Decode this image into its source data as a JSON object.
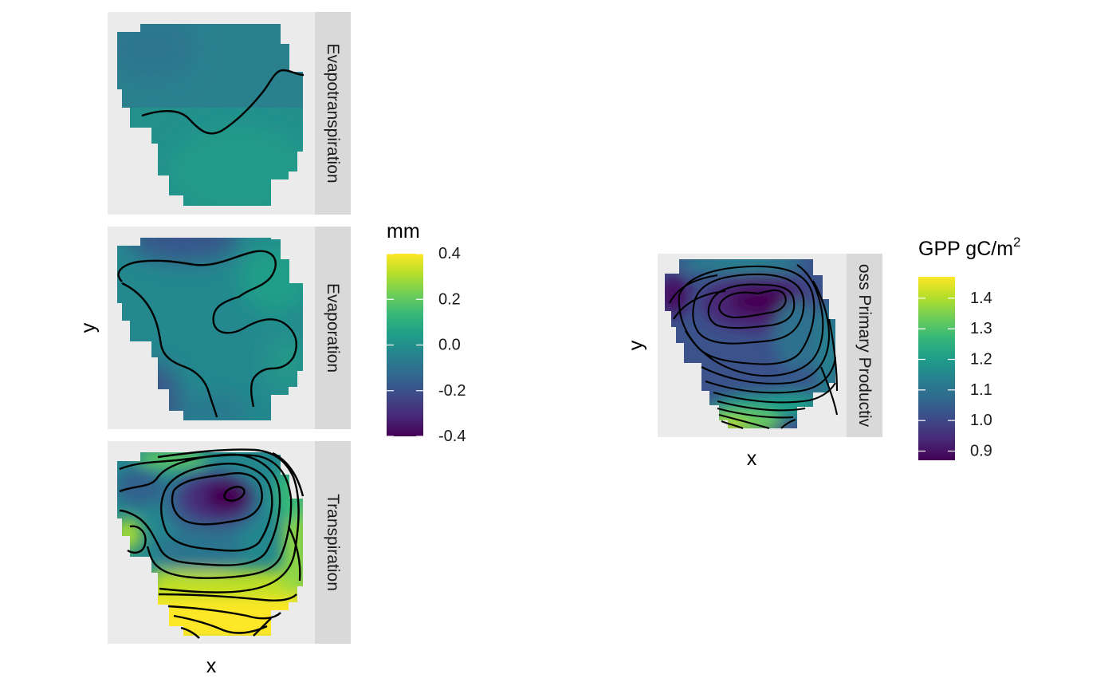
{
  "chart_data": [
    {
      "type": "heatmap",
      "x_axis_label": "x",
      "y_axis_label": "y",
      "x_ticks": [],
      "y_ticks": [],
      "panels": [
        {
          "strip_label": "Evapotranspiration",
          "approx_range": [
            0.0,
            0.1
          ],
          "contour_count": 1
        },
        {
          "strip_label": "Evaporation",
          "approx_range": [
            -0.2,
            0.1
          ],
          "contour_count": 3
        },
        {
          "strip_label": "Transpiration",
          "approx_range": [
            -0.4,
            0.4
          ],
          "contour_count": 12
        }
      ],
      "legend": {
        "title": "mm",
        "colormap": "viridis",
        "limits": [
          -0.4,
          0.4
        ],
        "breaks": [
          0.4,
          0.2,
          0.0,
          -0.2,
          -0.4
        ],
        "break_labels": [
          "0.4",
          "0.2",
          "0.0",
          "-0.2",
          "-0.4"
        ]
      }
    },
    {
      "type": "heatmap",
      "x_axis_label": "x",
      "y_axis_label": "y",
      "x_ticks": [],
      "y_ticks": [],
      "panels": [
        {
          "strip_label": "oss Primary Productiv",
          "approx_range": [
            0.88,
            1.43
          ],
          "contour_count": 17
        }
      ],
      "legend": {
        "title_main": "GPP gC/m",
        "title_superscript": "2",
        "colormap": "viridis",
        "limits": [
          0.87,
          1.47
        ],
        "breaks": [
          1.4,
          1.3,
          1.2,
          1.1,
          1.0,
          0.9
        ],
        "break_labels": [
          "1.4",
          "1.3",
          "1.2",
          "1.1",
          "1.0",
          "0.9"
        ]
      }
    }
  ],
  "colors": {
    "panel_background": "#ebebeb",
    "strip_background": "#d9d9d9",
    "strip_text": "#1a1a1a",
    "contour": "#000000",
    "viridis": [
      "#440154",
      "#482878",
      "#3e4989",
      "#31688e",
      "#26828e",
      "#1f9e89",
      "#35b779",
      "#6ece58",
      "#b5de2b",
      "#fde725"
    ]
  }
}
